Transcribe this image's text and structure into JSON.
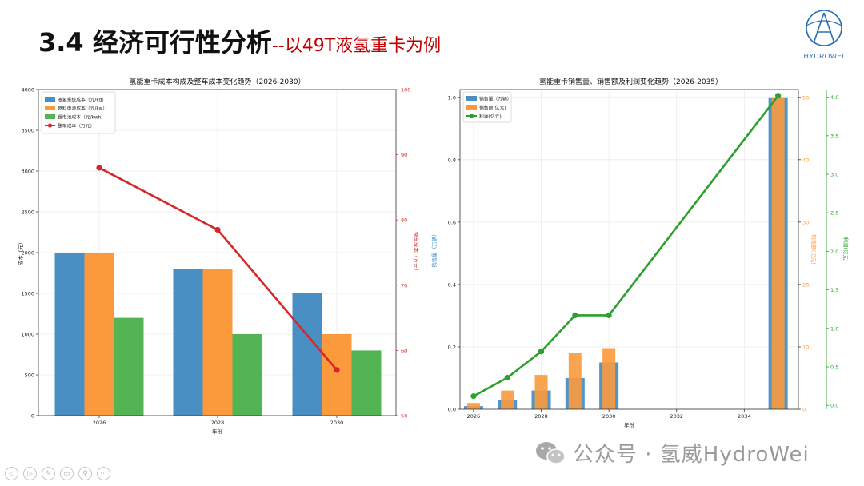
{
  "slide": {
    "title_main": "3.4 经济可行性分析",
    "title_sub": "--以49T液氢重卡为例",
    "logo_text": "HYDROWEI",
    "watermark": "公众号 · 氢威HydroWei"
  },
  "colors": {
    "blue": "#4a8fc4",
    "orange": "#fb9a3c",
    "green": "#53b453",
    "red": "#d62728",
    "green_line": "#2ca02c",
    "accent_red": "#c00000"
  },
  "controls": [
    "prev-icon",
    "next-icon",
    "pen-icon",
    "screen-icon",
    "zoom-icon",
    "more-icon"
  ],
  "chart_data": [
    {
      "type": "bar",
      "title": "氢能重卡成本构成及整车成本变化趋势（2026-2030）",
      "xlabel": "年份",
      "ylabel": "成本（元）",
      "y2label": "整车成本（万元）",
      "categories": [
        "2026",
        "2028",
        "2030"
      ],
      "ylim": [
        0,
        4000
      ],
      "yticks": [
        "0",
        "500",
        "1000",
        "1500",
        "2000",
        "2500",
        "3000",
        "3500",
        "4000"
      ],
      "y2lim": [
        50,
        100
      ],
      "y2ticks": [
        "50",
        "60",
        "70",
        "80",
        "90",
        "100"
      ],
      "series": [
        {
          "name": "液氢系统成本（元/kg）",
          "values": [
            2000,
            1800,
            1500
          ]
        },
        {
          "name": "燃料电池成本（元/kw）",
          "values": [
            2000,
            1800,
            1000
          ]
        },
        {
          "name": "锂电池成本（元/kwh）",
          "values": [
            1200,
            1000,
            800
          ]
        }
      ],
      "line_series": {
        "name": "整车成本（万元）",
        "values": [
          88,
          78.5,
          57
        ]
      },
      "grid": true,
      "legend": "top-left"
    },
    {
      "type": "bar",
      "title": "氢能重卡销售量、销售额及利润变化趋势（2026-2035）",
      "xlabel": "年份",
      "ylabel": "销售量（万辆）",
      "y2label": "销售额(亿元)",
      "y3label": "利润(亿元)",
      "x": [
        2026,
        2027,
        2028,
        2029,
        2030,
        2035
      ],
      "xticks": [
        "2026",
        "2028",
        "2030",
        "2032",
        "2034"
      ],
      "xlim": [
        2025.6,
        2035.6
      ],
      "ylim": [
        0,
        1.025
      ],
      "yticks": [
        "0.0",
        "0.2",
        "0.4",
        "0.6",
        "0.8",
        "1.0"
      ],
      "y2lim": [
        0,
        51.25
      ],
      "y2ticks": [
        "0",
        "10",
        "20",
        "30",
        "40",
        "50"
      ],
      "y3lim": [
        -0.05,
        4.1
      ],
      "y3ticks": [
        "0.0",
        "0.5",
        "1.0",
        "1.5",
        "2.0",
        "2.5",
        "3.0",
        "3.5",
        "4.0"
      ],
      "series": [
        {
          "name": "销售量（万辆）",
          "values": [
            0.01,
            0.03,
            0.06,
            0.1,
            0.15,
            1.0
          ]
        },
        {
          "name": "销售额(亿元)",
          "values": [
            1,
            3,
            5.5,
            9,
            9.8,
            50
          ]
        }
      ],
      "line_series": {
        "name": "利润(亿元)",
        "x": [
          2026,
          2027,
          2028,
          2029,
          2030,
          2035
        ],
        "values": [
          0.12,
          0.36,
          0.7,
          1.17,
          1.17,
          4.02
        ]
      },
      "grid": true,
      "legend": "top-left"
    }
  ]
}
